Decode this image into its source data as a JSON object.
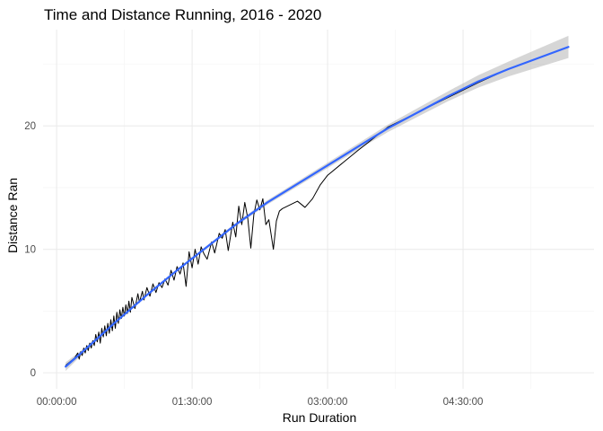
{
  "chart_data": {
    "type": "line",
    "title": "Time and Distance Running, 2016 - 2020",
    "xlabel": "Run Duration",
    "ylabel": "Distance Ran",
    "x_unit": "minutes",
    "xlim": [
      -9,
      357
    ],
    "ylim": [
      -1.3,
      27.8
    ],
    "x_ticks": [
      {
        "value": 0,
        "label": "00:00:00"
      },
      {
        "value": 90,
        "label": "01:30:00"
      },
      {
        "value": 180,
        "label": "03:00:00"
      },
      {
        "value": 270,
        "label": "04:30:00"
      }
    ],
    "y_ticks": [
      {
        "value": 0,
        "label": "0"
      },
      {
        "value": 10,
        "label": "10"
      },
      {
        "value": 20,
        "label": "20"
      }
    ],
    "grid": true,
    "legend": "none",
    "colors": {
      "line": "#000000",
      "smooth": "#3366FF",
      "band": "#999999"
    },
    "series": [
      {
        "values": [
          {
            "x": 6,
            "y": 0.6
          },
          {
            "x": 8,
            "y": 0.8
          },
          {
            "x": 10,
            "y": 1.0
          },
          {
            "x": 12,
            "y": 1.2
          },
          {
            "x": 14,
            "y": 1.6
          },
          {
            "x": 15,
            "y": 1.1
          },
          {
            "x": 16,
            "y": 1.7
          },
          {
            "x": 17,
            "y": 1.4
          },
          {
            "x": 18,
            "y": 2.0
          },
          {
            "x": 19,
            "y": 1.6
          },
          {
            "x": 20,
            "y": 2.2
          },
          {
            "x": 21,
            "y": 1.8
          },
          {
            "x": 22,
            "y": 2.4
          },
          {
            "x": 23,
            "y": 2.0
          },
          {
            "x": 24,
            "y": 2.6
          },
          {
            "x": 25,
            "y": 2.2
          },
          {
            "x": 26,
            "y": 3.1
          },
          {
            "x": 27,
            "y": 2.5
          },
          {
            "x": 28,
            "y": 3.3
          },
          {
            "x": 29,
            "y": 2.4
          },
          {
            "x": 30,
            "y": 3.6
          },
          {
            "x": 31,
            "y": 2.9
          },
          {
            "x": 32,
            "y": 3.8
          },
          {
            "x": 33,
            "y": 3.0
          },
          {
            "x": 34,
            "y": 4.0
          },
          {
            "x": 35,
            "y": 3.2
          },
          {
            "x": 36,
            "y": 4.3
          },
          {
            "x": 37,
            "y": 3.4
          },
          {
            "x": 38,
            "y": 4.6
          },
          {
            "x": 39,
            "y": 3.6
          },
          {
            "x": 40,
            "y": 4.9
          },
          {
            "x": 41,
            "y": 4.0
          },
          {
            "x": 42,
            "y": 5.1
          },
          {
            "x": 43,
            "y": 4.4
          },
          {
            "x": 44,
            "y": 5.3
          },
          {
            "x": 45,
            "y": 4.6
          },
          {
            "x": 46,
            "y": 5.5
          },
          {
            "x": 47,
            "y": 4.8
          },
          {
            "x": 48,
            "y": 5.8
          },
          {
            "x": 49,
            "y": 4.9
          },
          {
            "x": 50,
            "y": 6.1
          },
          {
            "x": 52,
            "y": 5.2
          },
          {
            "x": 54,
            "y": 6.4
          },
          {
            "x": 55,
            "y": 5.7
          },
          {
            "x": 57,
            "y": 6.6
          },
          {
            "x": 58,
            "y": 5.9
          },
          {
            "x": 60,
            "y": 6.9
          },
          {
            "x": 62,
            "y": 6.2
          },
          {
            "x": 64,
            "y": 7.2
          },
          {
            "x": 66,
            "y": 6.5
          },
          {
            "x": 68,
            "y": 7.3
          },
          {
            "x": 70,
            "y": 6.9
          },
          {
            "x": 72,
            "y": 7.6
          },
          {
            "x": 74,
            "y": 7.1
          },
          {
            "x": 76,
            "y": 8.3
          },
          {
            "x": 78,
            "y": 7.5
          },
          {
            "x": 80,
            "y": 8.6
          },
          {
            "x": 82,
            "y": 8.0
          },
          {
            "x": 84,
            "y": 8.9
          },
          {
            "x": 86,
            "y": 7.0
          },
          {
            "x": 88,
            "y": 9.8
          },
          {
            "x": 90,
            "y": 8.5
          },
          {
            "x": 92,
            "y": 10.0
          },
          {
            "x": 94,
            "y": 8.8
          },
          {
            "x": 96,
            "y": 10.2
          },
          {
            "x": 98,
            "y": 9.6
          },
          {
            "x": 100,
            "y": 9.2
          },
          {
            "x": 103,
            "y": 10.6
          },
          {
            "x": 105,
            "y": 9.7
          },
          {
            "x": 108,
            "y": 11.3
          },
          {
            "x": 110,
            "y": 10.9
          },
          {
            "x": 112,
            "y": 11.6
          },
          {
            "x": 114,
            "y": 9.9
          },
          {
            "x": 117,
            "y": 12.2
          },
          {
            "x": 119,
            "y": 11.0
          },
          {
            "x": 121,
            "y": 13.5
          },
          {
            "x": 123,
            "y": 12.0
          },
          {
            "x": 125,
            "y": 13.8
          },
          {
            "x": 127,
            "y": 12.5
          },
          {
            "x": 129,
            "y": 10.1
          },
          {
            "x": 131,
            "y": 12.8
          },
          {
            "x": 133,
            "y": 14.0
          },
          {
            "x": 135,
            "y": 13.2
          },
          {
            "x": 137,
            "y": 14.1
          },
          {
            "x": 139,
            "y": 12.0
          },
          {
            "x": 141,
            "y": 12.4
          },
          {
            "x": 144,
            "y": 10.0
          },
          {
            "x": 146,
            "y": 12.3
          },
          {
            "x": 148,
            "y": 13.1
          },
          {
            "x": 150,
            "y": 13.3
          },
          {
            "x": 155,
            "y": 13.6
          },
          {
            "x": 160,
            "y": 13.9
          },
          {
            "x": 165,
            "y": 13.4
          },
          {
            "x": 170,
            "y": 14.1
          },
          {
            "x": 175,
            "y": 15.2
          },
          {
            "x": 180,
            "y": 16.0
          },
          {
            "x": 200,
            "y": 18.0
          },
          {
            "x": 220,
            "y": 19.9
          },
          {
            "x": 240,
            "y": 21.1
          },
          {
            "x": 260,
            "y": 22.3
          },
          {
            "x": 280,
            "y": 23.5
          },
          {
            "x": 300,
            "y": 24.6
          },
          {
            "x": 320,
            "y": 25.5
          },
          {
            "x": 340,
            "y": 26.4
          }
        ]
      }
    ],
    "smooth": {
      "x": [
        6,
        20,
        40,
        60,
        80,
        100,
        120,
        140,
        160,
        180,
        200,
        220,
        240,
        260,
        280,
        300,
        320,
        340
      ],
      "y": [
        0.5,
        2.0,
        4.2,
        6.3,
        8.3,
        10.2,
        12.1,
        13.8,
        15.3,
        16.8,
        18.3,
        19.8,
        21.1,
        22.4,
        23.6,
        24.6,
        25.5,
        26.4
      ],
      "band_half_width": [
        0.35,
        0.15,
        0.12,
        0.1,
        0.1,
        0.12,
        0.14,
        0.18,
        0.2,
        0.22,
        0.25,
        0.3,
        0.35,
        0.4,
        0.5,
        0.6,
        0.75,
        0.9
      ]
    }
  }
}
